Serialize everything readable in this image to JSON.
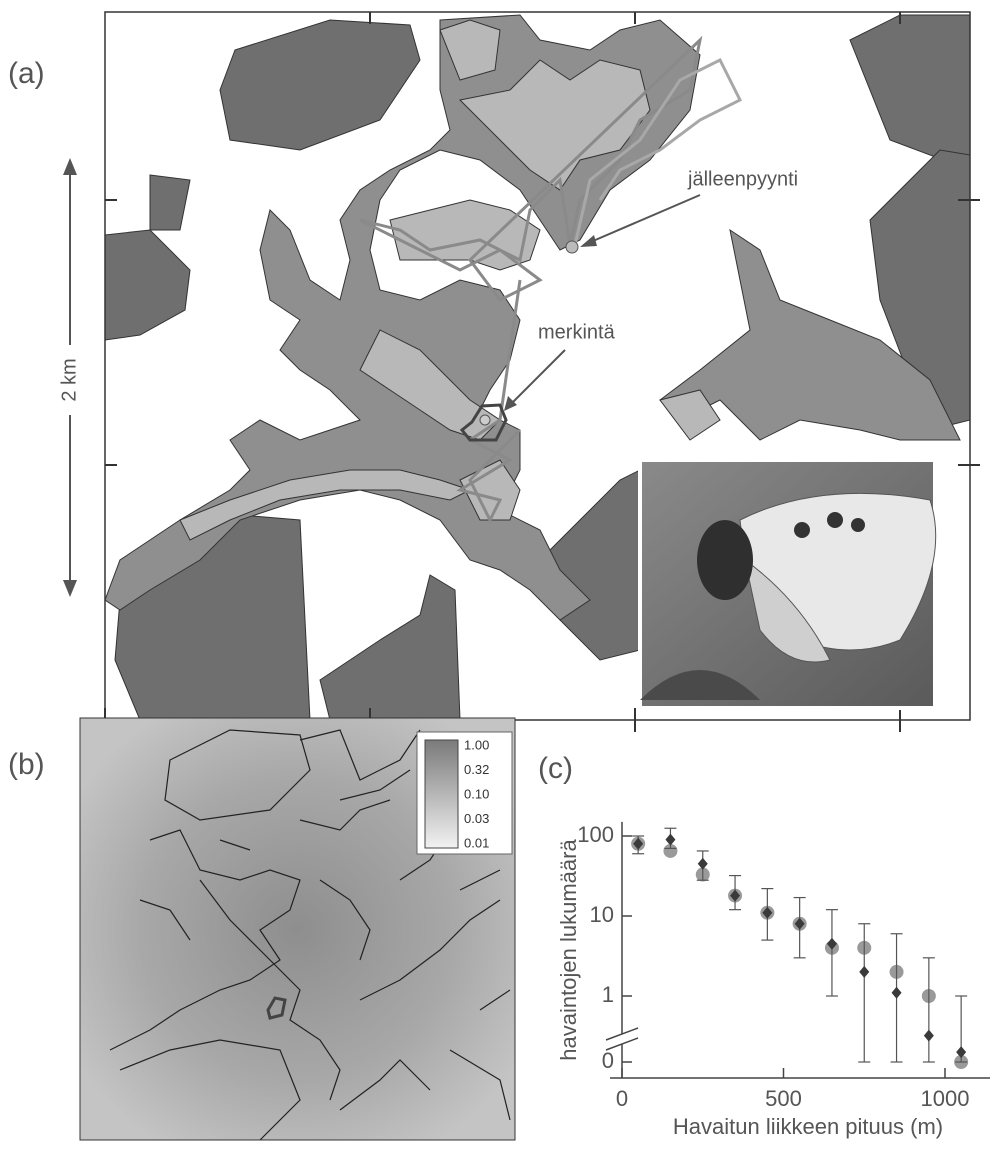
{
  "panels": {
    "a": {
      "label": "(a)",
      "scale": "2 km",
      "recapture": "jälleenpyynti",
      "marking": "merkintä"
    },
    "b": {
      "label": "(b)",
      "colorbar_labels": [
        "1.00",
        "0.32",
        "0.10",
        "0.03",
        "0.01"
      ]
    }
  },
  "chart_data": {
    "type": "scatter",
    "title": "(c)",
    "x_label": "Havaitun liikkeen pituus (m)",
    "y_label": "havaintojen lukumäärä",
    "xlim": [
      -20,
      1080
    ],
    "xticks": [
      0,
      500,
      1000
    ],
    "ylim": [
      0,
      150
    ],
    "yticks": [
      100,
      10,
      1,
      0
    ],
    "yscale": "log",
    "axis_break": true,
    "x": [
      50,
      150,
      250,
      350,
      450,
      550,
      650,
      750,
      850,
      950,
      1050
    ],
    "series": [
      {
        "color": "#9a9a9a",
        "marker": "circle",
        "values": [
          80,
          65,
          33,
          18,
          11,
          8,
          4,
          4,
          2,
          1,
          0
        ]
      },
      {
        "color": "#3a3a3a",
        "marker": "diamond",
        "values": [
          80,
          90,
          45,
          18,
          11,
          8,
          4.5,
          2,
          1.1,
          0.4,
          0.15
        ],
        "err_low": [
          60,
          70,
          28,
          12,
          5,
          3,
          1,
          0,
          0,
          0,
          0
        ],
        "err_high": [
          100,
          125,
          65,
          32,
          22,
          17,
          12,
          8,
          6,
          3,
          1
        ]
      }
    ]
  }
}
